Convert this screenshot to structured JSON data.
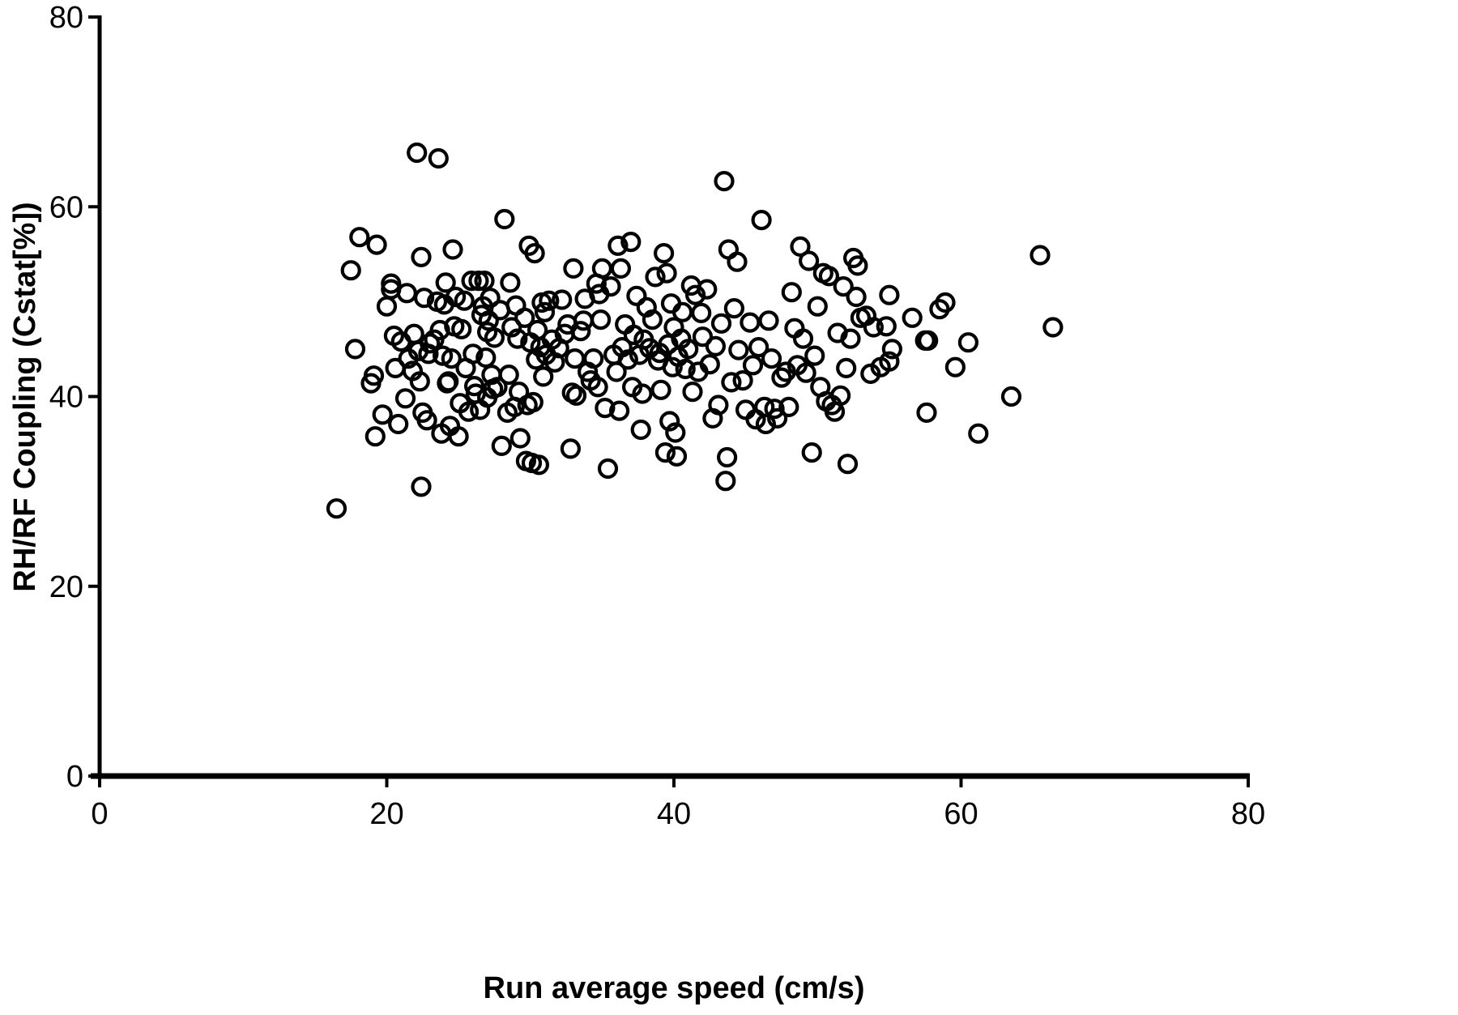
{
  "chart_data": {
    "type": "scatter",
    "title": "",
    "xlabel": "Run average speed (cm/s)",
    "ylabel": "RH/RF Coupling (Cstat[%])",
    "xlim": [
      0,
      80
    ],
    "ylim": [
      0,
      80
    ],
    "x_ticks": [
      "0",
      "20",
      "40",
      "60",
      "80"
    ],
    "y_ticks": [
      "0",
      "20",
      "40",
      "60",
      "80"
    ],
    "grid": false,
    "legend": null,
    "marker": {
      "shape": "open-circle",
      "color": "#000000"
    },
    "points": [
      [
        16.5,
        28.2
      ],
      [
        17.5,
        53.3
      ],
      [
        17.8,
        45.0
      ],
      [
        18.1,
        56.8
      ],
      [
        18.9,
        41.4
      ],
      [
        19.1,
        42.2
      ],
      [
        19.2,
        35.8
      ],
      [
        19.3,
        56.0
      ],
      [
        19.7,
        38.1
      ],
      [
        20.0,
        49.5
      ],
      [
        20.3,
        51.9
      ],
      [
        20.3,
        51.3
      ],
      [
        20.5,
        46.4
      ],
      [
        20.6,
        43.0
      ],
      [
        20.8,
        37.1
      ],
      [
        21.0,
        45.8
      ],
      [
        21.3,
        39.8
      ],
      [
        21.4,
        50.9
      ],
      [
        21.5,
        44.0
      ],
      [
        21.8,
        42.7
      ],
      [
        21.9,
        46.6
      ],
      [
        22.1,
        65.7
      ],
      [
        22.2,
        44.8
      ],
      [
        22.3,
        41.6
      ],
      [
        22.4,
        54.7
      ],
      [
        22.4,
        30.5
      ],
      [
        22.5,
        38.3
      ],
      [
        22.6,
        50.4
      ],
      [
        22.8,
        37.5
      ],
      [
        22.9,
        44.5
      ],
      [
        23.0,
        45.6
      ],
      [
        23.3,
        46.0
      ],
      [
        23.5,
        50.0
      ],
      [
        23.6,
        65.1
      ],
      [
        23.7,
        47.0
      ],
      [
        23.8,
        36.1
      ],
      [
        23.9,
        44.3
      ],
      [
        24.0,
        49.7
      ],
      [
        24.1,
        52.0
      ],
      [
        24.2,
        41.4
      ],
      [
        24.3,
        41.6
      ],
      [
        24.4,
        36.9
      ],
      [
        24.5,
        44.0
      ],
      [
        24.6,
        55.5
      ],
      [
        24.7,
        47.4
      ],
      [
        24.8,
        50.5
      ],
      [
        25.0,
        35.8
      ],
      [
        25.1,
        39.3
      ],
      [
        25.2,
        47.1
      ],
      [
        25.4,
        50.1
      ],
      [
        25.5,
        43.0
      ],
      [
        25.7,
        38.4
      ],
      [
        25.9,
        52.2
      ],
      [
        26.0,
        44.5
      ],
      [
        26.1,
        41.1
      ],
      [
        26.2,
        40.3
      ],
      [
        26.4,
        52.2
      ],
      [
        26.5,
        38.6
      ],
      [
        26.6,
        48.6
      ],
      [
        26.7,
        49.5
      ],
      [
        26.8,
        52.2
      ],
      [
        26.9,
        44.1
      ],
      [
        27.0,
        46.8
      ],
      [
        27.0,
        39.9
      ],
      [
        27.1,
        48.0
      ],
      [
        27.2,
        50.4
      ],
      [
        27.3,
        42.3
      ],
      [
        27.4,
        40.8
      ],
      [
        27.5,
        46.2
      ],
      [
        27.7,
        41.0
      ],
      [
        27.9,
        49.1
      ],
      [
        28.0,
        34.8
      ],
      [
        28.2,
        58.7
      ],
      [
        28.4,
        38.3
      ],
      [
        28.5,
        42.3
      ],
      [
        28.6,
        52.0
      ],
      [
        28.7,
        47.3
      ],
      [
        28.9,
        38.9
      ],
      [
        29.0,
        49.6
      ],
      [
        29.1,
        46.1
      ],
      [
        29.2,
        40.5
      ],
      [
        29.3,
        35.6
      ],
      [
        29.6,
        48.3
      ],
      [
        29.7,
        33.2
      ],
      [
        29.8,
        39.1
      ],
      [
        29.9,
        55.9
      ],
      [
        30.0,
        45.7
      ],
      [
        30.1,
        33.0
      ],
      [
        30.2,
        39.4
      ],
      [
        30.3,
        55.1
      ],
      [
        30.4,
        43.9
      ],
      [
        30.5,
        47.0
      ],
      [
        30.6,
        32.8
      ],
      [
        30.7,
        45.2
      ],
      [
        30.8,
        49.9
      ],
      [
        30.9,
        42.1
      ],
      [
        31.0,
        48.9
      ],
      [
        31.1,
        44.4
      ],
      [
        31.3,
        50.1
      ],
      [
        31.5,
        46.0
      ],
      [
        31.7,
        43.6
      ],
      [
        32.0,
        45.1
      ],
      [
        32.2,
        50.2
      ],
      [
        32.4,
        46.6
      ],
      [
        32.6,
        47.6
      ],
      [
        32.8,
        34.5
      ],
      [
        32.9,
        40.4
      ],
      [
        33.0,
        53.5
      ],
      [
        33.1,
        44.0
      ],
      [
        33.2,
        40.1
      ],
      [
        33.5,
        46.9
      ],
      [
        33.7,
        48.0
      ],
      [
        33.8,
        50.3
      ],
      [
        34.0,
        42.6
      ],
      [
        34.2,
        41.7
      ],
      [
        34.4,
        44.0
      ],
      [
        34.6,
        51.9
      ],
      [
        34.7,
        41.0
      ],
      [
        34.8,
        50.8
      ],
      [
        34.9,
        48.1
      ],
      [
        35.0,
        53.5
      ],
      [
        35.2,
        38.8
      ],
      [
        35.4,
        32.4
      ],
      [
        35.6,
        51.6
      ],
      [
        35.8,
        44.4
      ],
      [
        36.0,
        42.6
      ],
      [
        36.1,
        55.9
      ],
      [
        36.2,
        38.5
      ],
      [
        36.3,
        53.5
      ],
      [
        36.4,
        45.2
      ],
      [
        36.6,
        47.6
      ],
      [
        36.8,
        43.9
      ],
      [
        37.0,
        56.3
      ],
      [
        37.1,
        41.0
      ],
      [
        37.2,
        46.5
      ],
      [
        37.4,
        50.6
      ],
      [
        37.6,
        44.4
      ],
      [
        37.7,
        36.5
      ],
      [
        37.8,
        40.3
      ],
      [
        37.9,
        46.0
      ],
      [
        38.1,
        49.4
      ],
      [
        38.3,
        45.1
      ],
      [
        38.5,
        48.1
      ],
      [
        38.7,
        52.6
      ],
      [
        38.9,
        43.8
      ],
      [
        39.0,
        44.6
      ],
      [
        39.1,
        40.7
      ],
      [
        39.3,
        55.1
      ],
      [
        39.4,
        34.1
      ],
      [
        39.5,
        53.0
      ],
      [
        39.6,
        45.5
      ],
      [
        39.7,
        37.4
      ],
      [
        39.8,
        49.8
      ],
      [
        39.9,
        43.1
      ],
      [
        40.0,
        47.3
      ],
      [
        40.1,
        36.2
      ],
      [
        40.2,
        33.7
      ],
      [
        40.3,
        44.2
      ],
      [
        40.5,
        46.1
      ],
      [
        40.6,
        48.9
      ],
      [
        40.8,
        42.9
      ],
      [
        41.0,
        45.0
      ],
      [
        41.2,
        51.7
      ],
      [
        41.3,
        40.5
      ],
      [
        41.5,
        50.7
      ],
      [
        41.7,
        42.6
      ],
      [
        41.9,
        48.8
      ],
      [
        42.0,
        46.3
      ],
      [
        42.3,
        51.3
      ],
      [
        42.5,
        43.4
      ],
      [
        42.7,
        37.7
      ],
      [
        42.9,
        45.3
      ],
      [
        43.1,
        39.1
      ],
      [
        43.3,
        47.7
      ],
      [
        43.5,
        62.7
      ],
      [
        43.6,
        31.1
      ],
      [
        43.7,
        33.6
      ],
      [
        43.8,
        55.5
      ],
      [
        44.0,
        41.5
      ],
      [
        44.2,
        49.3
      ],
      [
        44.4,
        54.2
      ],
      [
        44.5,
        44.9
      ],
      [
        44.8,
        41.7
      ],
      [
        45.0,
        38.6
      ],
      [
        45.3,
        47.8
      ],
      [
        45.5,
        43.3
      ],
      [
        45.7,
        37.6
      ],
      [
        45.9,
        45.2
      ],
      [
        46.1,
        58.6
      ],
      [
        46.3,
        38.9
      ],
      [
        46.4,
        37.1
      ],
      [
        46.6,
        48.0
      ],
      [
        46.8,
        44.0
      ],
      [
        47.0,
        38.7
      ],
      [
        47.2,
        37.7
      ],
      [
        47.5,
        42.0
      ],
      [
        47.8,
        42.6
      ],
      [
        48.0,
        38.9
      ],
      [
        48.2,
        51.0
      ],
      [
        48.4,
        47.2
      ],
      [
        48.6,
        43.3
      ],
      [
        48.8,
        55.8
      ],
      [
        49.0,
        46.1
      ],
      [
        49.2,
        42.5
      ],
      [
        49.4,
        54.3
      ],
      [
        49.6,
        34.1
      ],
      [
        49.8,
        44.3
      ],
      [
        50.0,
        49.5
      ],
      [
        50.2,
        41.0
      ],
      [
        50.4,
        53.0
      ],
      [
        50.6,
        39.5
      ],
      [
        50.8,
        52.7
      ],
      [
        51.0,
        39.1
      ],
      [
        51.2,
        38.4
      ],
      [
        51.4,
        46.7
      ],
      [
        51.6,
        40.1
      ],
      [
        51.8,
        51.6
      ],
      [
        52.0,
        43.0
      ],
      [
        52.1,
        32.9
      ],
      [
        52.3,
        46.1
      ],
      [
        52.5,
        54.6
      ],
      [
        52.7,
        50.5
      ],
      [
        52.8,
        53.8
      ],
      [
        53.0,
        48.3
      ],
      [
        53.4,
        48.5
      ],
      [
        53.7,
        42.4
      ],
      [
        53.9,
        47.3
      ],
      [
        54.4,
        43.1
      ],
      [
        54.8,
        47.4
      ],
      [
        55.0,
        43.7
      ],
      [
        55.0,
        50.7
      ],
      [
        55.2,
        45.0
      ],
      [
        56.6,
        48.3
      ],
      [
        57.5,
        45.9
      ],
      [
        57.6,
        38.3
      ],
      [
        57.7,
        45.9
      ],
      [
        58.5,
        49.2
      ],
      [
        58.9,
        49.9
      ],
      [
        59.6,
        43.1
      ],
      [
        60.5,
        45.7
      ],
      [
        61.2,
        36.1
      ],
      [
        63.5,
        40.0
      ],
      [
        65.5,
        54.9
      ],
      [
        66.4,
        47.3
      ]
    ]
  }
}
